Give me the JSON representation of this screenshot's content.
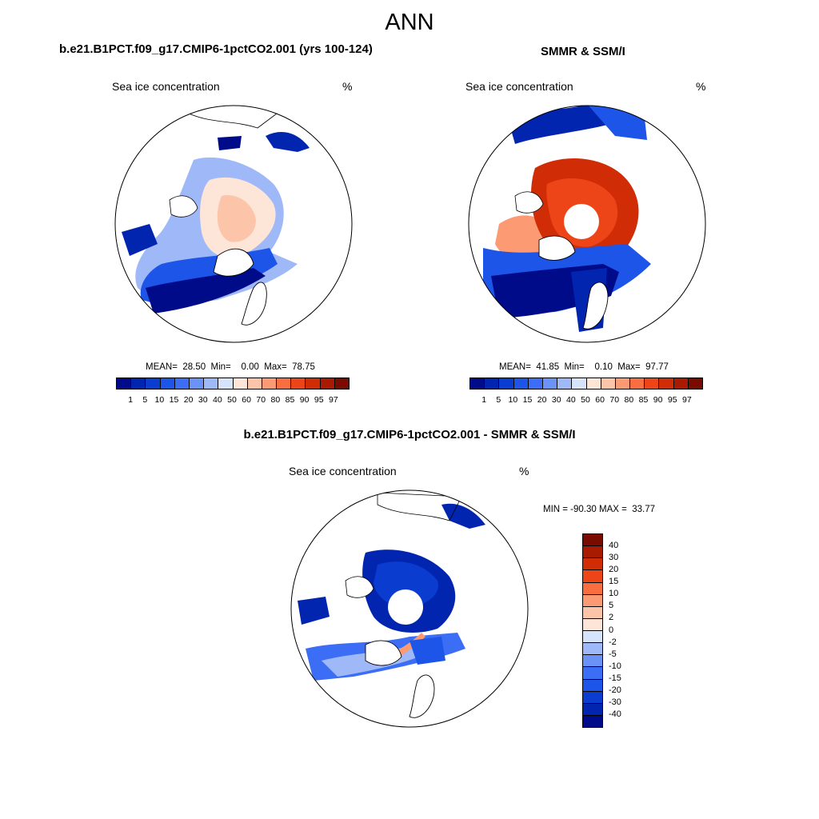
{
  "title": "ANN",
  "panels": [
    {
      "title": "b.e21.B1PCT.f09_g17.CMIP6-1pctCO2.001 (yrs 100-124)",
      "variable": "Sea ice concentration",
      "unit": "%",
      "stats": "MEAN=  28.50  Min=    0.00  Max=  78.75"
    },
    {
      "title": "SMMR & SSM/I",
      "variable": "Sea ice concentration",
      "unit": "%",
      "stats": "MEAN=  41.85  Min=    0.10  Max=  97.77"
    },
    {
      "title": "b.e21.B1PCT.f09_g17.CMIP6-1pctCO2.001 - SMMR & SSM/I",
      "variable": "Sea ice concentration",
      "unit": "%",
      "stats": "MIN = -90.30 MAX =  33.77"
    }
  ],
  "colorbar_abs": {
    "labels": [
      "1",
      "5",
      "10",
      "15",
      "20",
      "30",
      "40",
      "50",
      "60",
      "70",
      "80",
      "85",
      "90",
      "95",
      "97"
    ],
    "colors": [
      "#000b8a",
      "#0225b0",
      "#0a3ccf",
      "#1d55e8",
      "#3b6ef5",
      "#6a92f7",
      "#9fb8f8",
      "#d6e4fb",
      "#fde6d8",
      "#fcc4a8",
      "#fb9a73",
      "#f86e40",
      "#ee4518",
      "#d02c06",
      "#a81a02",
      "#7a0b00"
    ]
  },
  "colorbar_diff": {
    "labels": [
      "40",
      "30",
      "20",
      "15",
      "10",
      "5",
      "2",
      "0",
      "-2",
      "-5",
      "-10",
      "-15",
      "-20",
      "-30",
      "-40"
    ],
    "colors": [
      "#7a0b00",
      "#a81a02",
      "#d02c06",
      "#ee4518",
      "#f86e40",
      "#fb9a73",
      "#fcc4a8",
      "#fde6d8",
      "#d6e4fb",
      "#9fb8f8",
      "#6a92f7",
      "#3b6ef5",
      "#1d55e8",
      "#0a3ccf",
      "#0225b0",
      "#000b8a"
    ]
  }
}
